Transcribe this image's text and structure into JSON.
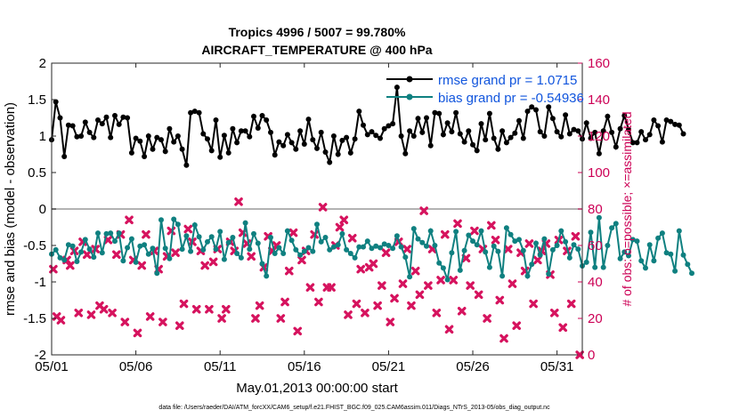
{
  "chart_data": {
    "type": "line",
    "title_line1": "Tropics 4996 / 5007 = 99.780%",
    "title_line2": "AIRCRAFT_TEMPERATURE @ 400 hPa",
    "xlabel": "May.01,2013 00:00:00 start",
    "ylabel": "rmse and bias (model - observation)",
    "ylabel_right": "# of obs: o=possible; ×=assimilated",
    "footer": "data file: /Users/raeder/DAI/ATM_forcXX/CAM6_setup/f.e21.FHIST_BGC.f09_025.CAM6assim.011/Diags_NTrS_2013-05/obs_diag_output.nc",
    "xlim": [
      0,
      31.5
    ],
    "ylim": [
      -2,
      2
    ],
    "ylim_right": [
      0,
      160
    ],
    "x_ticks": [
      0,
      5,
      10,
      15,
      20,
      25,
      30
    ],
    "x_tick_labels": [
      "05/01",
      "05/06",
      "05/11",
      "05/16",
      "05/21",
      "05/26",
      "05/31"
    ],
    "y_ticks": [
      -2,
      -1.5,
      -1,
      -0.5,
      0,
      0.5,
      1,
      1.5,
      2
    ],
    "y_tick_labels": [
      "-2",
      "-1.5",
      "-1",
      "-0.5",
      "0",
      "0.5",
      "1",
      "1.5",
      "2"
    ],
    "y_ticks_right": [
      0,
      20,
      40,
      60,
      80,
      100,
      120,
      140,
      160
    ],
    "y_tick_labels_right": [
      "0",
      "20",
      "40",
      "60",
      "80",
      "100",
      "120",
      "140",
      "160"
    ],
    "zero_line": 0,
    "colors": {
      "rmse": "#000000",
      "bias": "#0f8080",
      "obs": "#d6135e",
      "zero": "#b3b3b3",
      "legend_text": "#1155dd",
      "right_axis": "#cc0055"
    },
    "series": [
      {
        "name": "rmse grand pr = 1.0715",
        "axis": "left",
        "x0": 0.0,
        "dx": 0.25,
        "values": [
          0.95,
          1.47,
          1.25,
          0.72,
          1.15,
          1.14,
          0.99,
          1.0,
          1.19,
          1.05,
          0.98,
          1.22,
          1.17,
          1.26,
          0.98,
          1.28,
          1.16,
          1.26,
          1.25,
          0.77,
          0.97,
          0.93,
          0.72,
          1.0,
          0.82,
          0.98,
          0.95,
          0.79,
          1.1,
          0.92,
          1.0,
          0.82,
          0.6,
          1.32,
          1.34,
          1.32,
          1.03,
          0.96,
          0.8,
          1.22,
          0.71,
          1.01,
          0.77,
          1.1,
          0.91,
          1.07,
          1.07,
          0.99,
          1.27,
          1.11,
          1.28,
          1.22,
          1.05,
          0.74,
          0.92,
          0.87,
          1.02,
          0.91,
          0.82,
          1.07,
          0.89,
          1.23,
          0.95,
          0.83,
          1.05,
          0.78,
          0.64,
          1.0,
          0.75,
          0.94,
          0.98,
          0.77,
          0.96,
          1.34,
          1.15,
          1.02,
          1.06,
          1.01,
          0.97,
          1.1,
          1.14,
          1.17,
          1.67,
          1.0,
          0.76,
          1.07,
          1.0,
          1.24,
          1.05,
          1.25,
          0.87,
          1.32,
          1.31,
          1.02,
          1.18,
          1.06,
          1.32,
          1.03,
          0.92,
          1.07,
          0.88,
          0.8,
          1.17,
          0.95,
          1.31,
          0.97,
          0.82,
          1.07,
          0.91,
          0.98,
          1.04,
          1.21,
          0.97,
          1.34,
          1.4,
          1.36,
          1.06,
          1.0,
          1.4,
          1.24,
          1.06,
          0.99,
          1.29,
          1.03,
          1.09,
          1.07,
          0.96,
          1.18,
          0.97,
          1.05,
          0.76,
          1.07,
          1.27,
          1.05,
          0.85,
          1.1,
          1.28,
          1.09,
          0.91,
          0.91,
          1.06,
          0.95,
          1.02,
          1.22,
          1.14,
          0.92,
          1.22,
          1.2,
          1.16,
          1.15,
          1.03
        ]
      },
      {
        "name": "bias grand pr = -0.54936",
        "axis": "left",
        "x0": 0.0,
        "dx": 0.25,
        "values": [
          -0.62,
          -0.56,
          -0.67,
          -0.7,
          -0.49,
          -0.51,
          -0.72,
          -0.59,
          -0.42,
          -0.55,
          -0.66,
          -0.33,
          -0.6,
          -0.34,
          -0.33,
          -0.44,
          -0.33,
          -0.71,
          -0.53,
          -0.41,
          -0.73,
          -0.51,
          -0.49,
          -0.62,
          -0.54,
          -0.88,
          -0.15,
          -0.54,
          -0.68,
          -0.14,
          -0.21,
          -0.55,
          -0.37,
          -0.58,
          -0.22,
          -0.38,
          -0.56,
          -0.45,
          -0.38,
          -0.55,
          -0.31,
          -0.69,
          -0.46,
          -0.39,
          -0.61,
          -0.67,
          -0.19,
          -0.55,
          -0.34,
          -0.47,
          -0.75,
          -0.92,
          -0.39,
          -0.61,
          -0.53,
          -0.61,
          -0.3,
          -0.43,
          -0.56,
          -0.63,
          -0.58,
          -0.53,
          -0.58,
          -0.21,
          -0.45,
          -0.39,
          -0.56,
          -0.52,
          -0.49,
          -0.34,
          -0.56,
          -0.61,
          -0.67,
          -0.52,
          -0.52,
          -0.44,
          -0.54,
          -0.51,
          -0.53,
          -0.48,
          -0.5,
          -0.54,
          -0.37,
          -0.52,
          -0.66,
          -0.93,
          -0.27,
          -0.41,
          -0.46,
          -0.51,
          -0.3,
          -0.5,
          -0.74,
          -0.81,
          -0.97,
          -0.6,
          -0.31,
          -0.84,
          -0.57,
          -0.36,
          -0.44,
          -0.49,
          -0.3,
          -0.59,
          -0.8,
          -0.51,
          -0.58,
          -0.92,
          -0.26,
          -0.35,
          -0.44,
          -0.42,
          -0.57,
          -0.92,
          -0.76,
          -0.47,
          -0.63,
          -0.41,
          -0.89,
          -0.56,
          -0.5,
          -0.3,
          -0.45,
          -0.67,
          -0.49,
          -0.55,
          -0.78,
          -0.73,
          -0.32,
          -0.8,
          -0.12,
          -0.8,
          -0.5,
          -0.26,
          -0.2,
          -0.68,
          -0.59,
          -0.64,
          -0.42,
          -0.44,
          -0.71,
          -0.81,
          -0.49,
          -0.71,
          -0.4,
          -0.33,
          -0.6,
          -0.62,
          -0.85,
          -0.3,
          -0.63,
          -0.76,
          -0.88
        ]
      },
      {
        "name": "obs count",
        "axis": "right",
        "marker": "x",
        "points": [
          [
            0.1,
            47
          ],
          [
            0.3,
            21
          ],
          [
            0.55,
            19
          ],
          [
            0.9,
            52
          ],
          [
            1.1,
            49
          ],
          [
            1.35,
            57
          ],
          [
            1.6,
            23
          ],
          [
            1.85,
            62
          ],
          [
            2.1,
            55
          ],
          [
            2.35,
            22
          ],
          [
            2.6,
            58
          ],
          [
            2.85,
            27
          ],
          [
            3.1,
            25
          ],
          [
            3.35,
            63
          ],
          [
            3.6,
            23
          ],
          [
            3.85,
            55
          ],
          [
            4.1,
            66
          ],
          [
            4.35,
            18
          ],
          [
            4.6,
            74
          ],
          [
            4.85,
            52
          ],
          [
            5.1,
            12
          ],
          [
            5.35,
            49
          ],
          [
            5.6,
            66
          ],
          [
            5.85,
            21
          ],
          [
            6.1,
            57
          ],
          [
            6.35,
            47
          ],
          [
            6.6,
            18
          ],
          [
            6.85,
            54
          ],
          [
            7.1,
            68
          ],
          [
            7.35,
            56
          ],
          [
            7.6,
            16
          ],
          [
            7.85,
            28
          ],
          [
            8.1,
            69
          ],
          [
            8.35,
            62
          ],
          [
            8.6,
            25
          ],
          [
            8.85,
            57
          ],
          [
            9.1,
            49
          ],
          [
            9.35,
            25
          ],
          [
            9.6,
            51
          ],
          [
            9.85,
            58
          ],
          [
            10.1,
            20
          ],
          [
            10.35,
            25
          ],
          [
            10.6,
            62
          ],
          [
            10.85,
            57
          ],
          [
            11.1,
            84
          ],
          [
            11.35,
            67
          ],
          [
            11.6,
            61
          ],
          [
            11.85,
            54
          ],
          [
            12.1,
            20
          ],
          [
            12.35,
            27
          ],
          [
            12.6,
            48
          ],
          [
            12.85,
            65
          ],
          [
            13.1,
            57
          ],
          [
            13.35,
            60
          ],
          [
            13.6,
            20
          ],
          [
            13.85,
            29
          ],
          [
            14.1,
            46
          ],
          [
            14.35,
            67
          ],
          [
            14.6,
            13
          ],
          [
            14.85,
            52
          ],
          [
            15.1,
            57
          ],
          [
            15.35,
            37
          ],
          [
            15.6,
            66
          ],
          [
            15.85,
            29
          ],
          [
            16.1,
            81
          ],
          [
            16.35,
            37
          ],
          [
            16.6,
            37
          ],
          [
            16.85,
            60
          ],
          [
            17.1,
            70
          ],
          [
            17.35,
            74
          ],
          [
            17.6,
            22
          ],
          [
            17.85,
            64
          ],
          [
            18.1,
            28
          ],
          [
            18.35,
            47
          ],
          [
            18.6,
            23
          ],
          [
            18.85,
            48
          ],
          [
            19.1,
            50
          ],
          [
            19.35,
            27
          ],
          [
            19.6,
            38
          ],
          [
            19.85,
            56
          ],
          [
            20.1,
            18
          ],
          [
            20.35,
            31
          ],
          [
            20.6,
            62
          ],
          [
            20.85,
            39
          ],
          [
            21.1,
            58
          ],
          [
            21.35,
            27
          ],
          [
            21.6,
            46
          ],
          [
            21.85,
            33
          ],
          [
            22.1,
            79
          ],
          [
            22.35,
            38
          ],
          [
            22.6,
            58
          ],
          [
            22.85,
            23
          ],
          [
            23.1,
            41
          ],
          [
            23.35,
            66
          ],
          [
            23.6,
            14
          ],
          [
            23.85,
            41
          ],
          [
            24.1,
            72
          ],
          [
            24.35,
            24
          ],
          [
            24.6,
            53
          ],
          [
            24.85,
            38
          ],
          [
            25.1,
            68
          ],
          [
            25.35,
            33
          ],
          [
            25.6,
            58
          ],
          [
            25.85,
            20
          ],
          [
            26.1,
            71
          ],
          [
            26.35,
            63
          ],
          [
            26.6,
            30
          ],
          [
            26.85,
            9
          ],
          [
            27.1,
            58
          ],
          [
            27.35,
            39
          ],
          [
            27.6,
            16
          ],
          [
            27.85,
            56
          ],
          [
            28.1,
            46
          ],
          [
            28.35,
            61
          ],
          [
            28.6,
            28
          ],
          [
            28.85,
            52
          ],
          [
            29.1,
            57
          ],
          [
            29.35,
            61
          ],
          [
            29.6,
            44
          ],
          [
            29.85,
            23
          ],
          [
            30.1,
            63
          ],
          [
            30.35,
            15
          ],
          [
            30.6,
            57
          ],
          [
            30.85,
            28
          ],
          [
            31.1,
            65
          ],
          [
            31.35,
            0
          ]
        ]
      }
    ],
    "legend": {
      "position": "top-right",
      "entries": [
        "rmse grand pr = 1.0715",
        "bias grand pr = -0.54936"
      ]
    }
  }
}
